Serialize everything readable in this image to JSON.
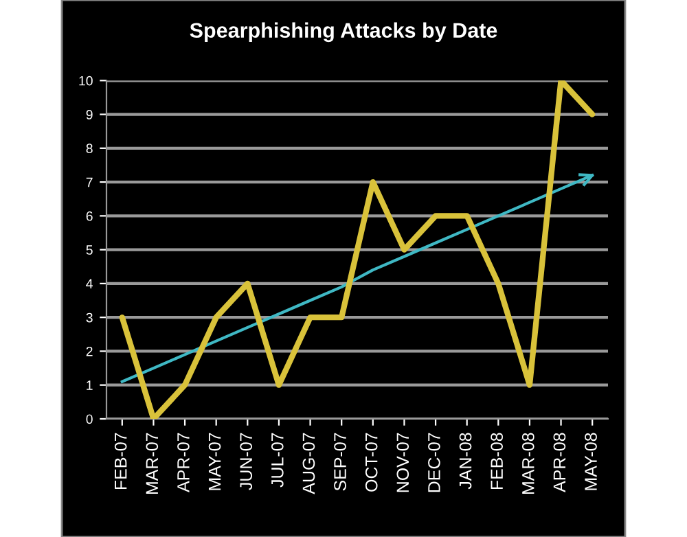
{
  "chart_data": {
    "type": "line",
    "title": "Spearphishing Attacks by Date",
    "categories": [
      "FEB-07",
      "MAR-07",
      "APR-07",
      "MAY-07",
      "JUN-07",
      "JUL-07",
      "AUG-07",
      "SEP-07",
      "OCT-07",
      "NOV-07",
      "DEC-07",
      "JAN-08",
      "FEB-08",
      "MAR-08",
      "APR-08",
      "MAY-08"
    ],
    "series": [
      {
        "color": "#d9c23a",
        "values": [
          3,
          0,
          1,
          3,
          4,
          1,
          3,
          3,
          7,
          5,
          6,
          6,
          4,
          1,
          10,
          9
        ]
      },
      {
        "type": "line",
        "color": "#3fb8c4",
        "values": [
          1.1,
          1.5,
          1.9,
          2.3,
          2.7,
          3.1,
          3.5,
          3.9,
          4.4,
          4.8,
          5.2,
          5.6,
          6.0,
          6.4,
          6.8,
          7.2
        ]
      }
    ],
    "ylim": [
      0,
      10
    ],
    "yticks": [
      0,
      1,
      2,
      3,
      4,
      5,
      6,
      7,
      8,
      9,
      10
    ],
    "grid": "y",
    "marker": "none",
    "line_style": "solid"
  }
}
